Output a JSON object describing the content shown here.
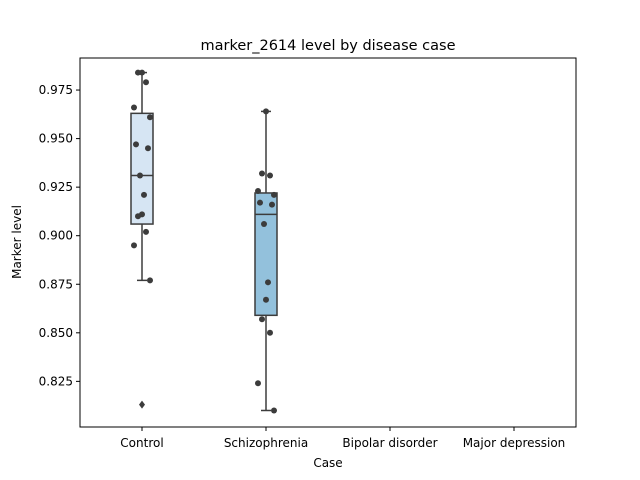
{
  "chart_data": {
    "type": "box",
    "title": "marker_2614 level by disease case",
    "xlabel": "Case",
    "ylabel": "Marker level",
    "categories": [
      "Control",
      "Schizophrenia",
      "Bipolar disorder",
      "Major depression"
    ],
    "ylim": [
      0.8015,
      0.9915
    ],
    "yticks": [
      0.825,
      0.85,
      0.875,
      0.9,
      0.925,
      0.95,
      0.975
    ],
    "ytick_labels": [
      "0.825",
      "0.850",
      "0.875",
      "0.900",
      "0.925",
      "0.950",
      "0.975"
    ],
    "grid": false,
    "legend": "none",
    "colors": {
      "Control": "#d6e5f3",
      "Schizophrenia": "#93c1dc",
      "box_edge": "#3c3c3c",
      "points": "#3c3c3c"
    },
    "boxes": [
      {
        "category": "Control",
        "q1": 0.906,
        "median": 0.931,
        "q3": 0.963,
        "whisker_low": 0.877,
        "whisker_high": 0.984,
        "outliers": [
          0.813
        ]
      },
      {
        "category": "Schizophrenia",
        "q1": 0.859,
        "median": 0.911,
        "q3": 0.922,
        "whisker_low": 0.81,
        "whisker_high": 0.964,
        "outliers": []
      }
    ],
    "points": [
      {
        "category": "Control",
        "values": [
          0.984,
          0.984,
          0.979,
          0.966,
          0.961,
          0.947,
          0.945,
          0.931,
          0.921,
          0.911,
          0.91,
          0.902,
          0.895,
          0.877
        ]
      },
      {
        "category": "Schizophrenia",
        "values": [
          0.964,
          0.932,
          0.931,
          0.923,
          0.921,
          0.917,
          0.916,
          0.906,
          0.876,
          0.867,
          0.857,
          0.85,
          0.824,
          0.81
        ]
      }
    ]
  }
}
